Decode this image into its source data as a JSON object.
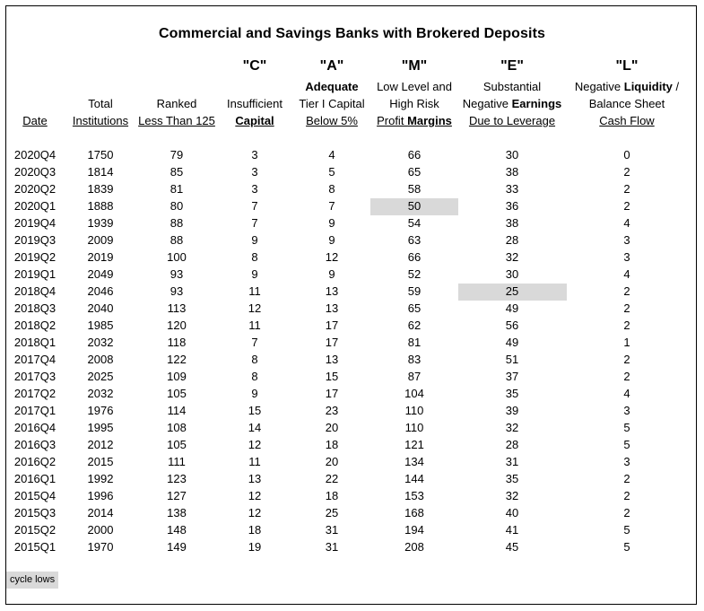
{
  "title": "Commercial and Savings Banks with Brokered Deposits",
  "columns": [
    {
      "letter": "",
      "lines": [
        "",
        "",
        "Date"
      ]
    },
    {
      "letter": "",
      "lines": [
        "",
        "Total",
        "Institutions"
      ]
    },
    {
      "letter": "",
      "lines": [
        "",
        "Ranked",
        "Less Than 125"
      ]
    },
    {
      "letter": "\"C\"",
      "lines": [
        "",
        "Insufficient",
        "Capital"
      ]
    },
    {
      "letter": "\"A\"",
      "lines": [
        "Adequate",
        "Tier I Capital",
        "Below 5%"
      ]
    },
    {
      "letter": "\"M\"",
      "lines": [
        "Low Level and",
        "High Risk",
        "Profit Margins"
      ]
    },
    {
      "letter": "\"E\"",
      "lines": [
        "Substantial",
        "Negative Earnings",
        "Due to Leverage"
      ]
    },
    {
      "letter": "\"L\"",
      "lines": [
        "Negative Liquidity /",
        "Balance Sheet",
        "Cash Flow"
      ]
    }
  ],
  "rows": [
    [
      "2020Q4",
      "1750",
      "79",
      "3",
      "4",
      "66",
      "30",
      "0"
    ],
    [
      "2020Q3",
      "1814",
      "85",
      "3",
      "5",
      "65",
      "38",
      "2"
    ],
    [
      "2020Q2",
      "1839",
      "81",
      "3",
      "8",
      "58",
      "33",
      "2"
    ],
    [
      "2020Q1",
      "1888",
      "80",
      "7",
      "7",
      "50",
      "36",
      "2"
    ],
    [
      "2019Q4",
      "1939",
      "88",
      "7",
      "9",
      "54",
      "38",
      "4"
    ],
    [
      "2019Q3",
      "2009",
      "88",
      "9",
      "9",
      "63",
      "28",
      "3"
    ],
    [
      "2019Q2",
      "2019",
      "100",
      "8",
      "12",
      "66",
      "32",
      "3"
    ],
    [
      "2019Q1",
      "2049",
      "93",
      "9",
      "9",
      "52",
      "30",
      "4"
    ],
    [
      "2018Q4",
      "2046",
      "93",
      "11",
      "13",
      "59",
      "25",
      "2"
    ],
    [
      "2018Q3",
      "2040",
      "113",
      "12",
      "13",
      "65",
      "49",
      "2"
    ],
    [
      "2018Q2",
      "1985",
      "120",
      "11",
      "17",
      "62",
      "56",
      "2"
    ],
    [
      "2018Q1",
      "2032",
      "118",
      "7",
      "17",
      "81",
      "49",
      "1"
    ],
    [
      "2017Q4",
      "2008",
      "122",
      "8",
      "13",
      "83",
      "51",
      "2"
    ],
    [
      "2017Q3",
      "2025",
      "109",
      "8",
      "15",
      "87",
      "37",
      "2"
    ],
    [
      "2017Q2",
      "2032",
      "105",
      "9",
      "17",
      "104",
      "35",
      "4"
    ],
    [
      "2017Q1",
      "1976",
      "114",
      "15",
      "23",
      "110",
      "39",
      "3"
    ],
    [
      "2016Q4",
      "1995",
      "108",
      "14",
      "20",
      "110",
      "32",
      "5"
    ],
    [
      "2016Q3",
      "2012",
      "105",
      "12",
      "18",
      "121",
      "28",
      "5"
    ],
    [
      "2016Q2",
      "2015",
      "111",
      "11",
      "20",
      "134",
      "31",
      "3"
    ],
    [
      "2016Q1",
      "1992",
      "123",
      "13",
      "22",
      "144",
      "35",
      "2"
    ],
    [
      "2015Q4",
      "1996",
      "127",
      "12",
      "18",
      "153",
      "32",
      "2"
    ],
    [
      "2015Q3",
      "2014",
      "138",
      "12",
      "25",
      "168",
      "40",
      "2"
    ],
    [
      "2015Q2",
      "2000",
      "148",
      "18",
      "31",
      "194",
      "41",
      "5"
    ],
    [
      "2015Q1",
      "1970",
      "149",
      "19",
      "31",
      "208",
      "45",
      "5"
    ]
  ],
  "highlights": [
    {
      "row": 3,
      "col": 5
    },
    {
      "row": 8,
      "col": 6
    }
  ],
  "legend": "cycle lows",
  "colors": {
    "highlight": "#d9d9d9",
    "border": "#000000"
  }
}
